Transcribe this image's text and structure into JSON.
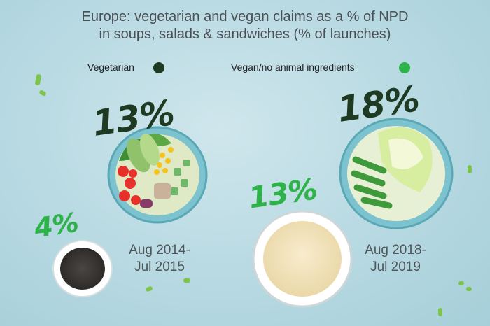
{
  "title": {
    "line1": "Europe: vegetarian and vegan claims as a % of NPD",
    "line2": "in soups, salads & sandwiches (% of launches)"
  },
  "legend": [
    {
      "label": "Vegetarian",
      "color": "#1e3a22"
    },
    {
      "label": "Vegan/no animal ingredients",
      "color": "#2eb34a"
    }
  ],
  "colors": {
    "vegetarian": "#1e3a22",
    "vegan": "#2eb34a"
  },
  "chart_data": {
    "type": "bar",
    "title": "Europe: vegetarian and vegan claims as a % of NPD in soups, salads & sandwiches (% of launches)",
    "categories": [
      {
        "line1": "Aug 2014-",
        "line2": "Jul 2015"
      },
      {
        "line1": "Aug 2018-",
        "line2": "Jul 2019"
      }
    ],
    "series": [
      {
        "name": "Vegetarian",
        "values": [
          13,
          18
        ],
        "labels": [
          "13%",
          "18%"
        ]
      },
      {
        "name": "Vegan/no animal ingredients",
        "values": [
          4,
          13
        ],
        "labels": [
          "4%",
          "13%"
        ]
      }
    ],
    "unit": "%",
    "legend_position": "top"
  }
}
